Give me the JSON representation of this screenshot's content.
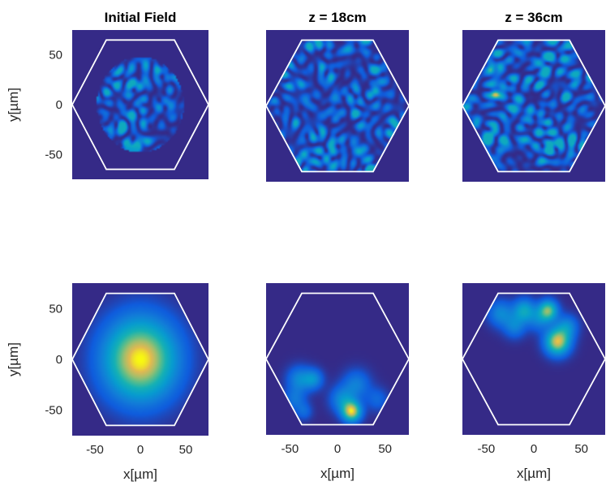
{
  "chart_data": [
    {
      "type": "heatmap",
      "title": "Initial Field",
      "pattern": "speckle-disk",
      "xlabel": "",
      "ylabel": "y[µm]",
      "xlim": [
        -75,
        75
      ],
      "ylim": [
        75,
        -75
      ],
      "xticks": [],
      "yticks": [
        "-50",
        "0",
        "50"
      ],
      "overlay": "hexagon",
      "hexagon_radius": 75
    },
    {
      "type": "heatmap",
      "title": "z = 18cm",
      "pattern": "speckle-hex",
      "xlabel": "",
      "ylabel": "",
      "xlim": [
        -75,
        75
      ],
      "ylim": [
        75,
        -75
      ],
      "xticks": [],
      "yticks": [],
      "overlay": "hexagon",
      "hexagon_radius": 75,
      "hotspots": [
        [
          22,
          -45
        ],
        [
          -35,
          -48
        ],
        [
          40,
          15
        ]
      ]
    },
    {
      "type": "heatmap",
      "title": "z = 36cm",
      "pattern": "speckle-hex",
      "xlabel": "",
      "ylabel": "",
      "xlim": [
        -75,
        75
      ],
      "ylim": [
        75,
        -75
      ],
      "xticks": [],
      "yticks": [],
      "overlay": "hexagon",
      "hexagon_radius": 75,
      "hotspots": [
        [
          -40,
          12
        ],
        [
          -35,
          38
        ],
        [
          -45,
          35
        ]
      ]
    },
    {
      "type": "heatmap",
      "title": "",
      "pattern": "gaussian",
      "xlabel": "x[µm]",
      "ylabel": "y[µm]",
      "xlim": [
        -75,
        75
      ],
      "ylim": [
        75,
        -75
      ],
      "xticks": [
        "-50",
        "0",
        "50"
      ],
      "yticks": [
        "-50",
        "0",
        "50"
      ],
      "overlay": "hexagon",
      "hexagon_radius": 75,
      "blobs": [
        [
          0,
          0,
          28,
          1.0
        ]
      ]
    },
    {
      "type": "heatmap",
      "title": "",
      "pattern": "blobs",
      "xlabel": "x[µm]",
      "ylabel": "",
      "xlim": [
        -75,
        75
      ],
      "ylim": [
        75,
        -75
      ],
      "xticks": [
        "-50",
        "0",
        "50"
      ],
      "yticks": [],
      "overlay": "hexagon",
      "hexagon_radius": 75,
      "blobs": [
        [
          15,
          -52,
          7,
          0.9
        ],
        [
          5,
          -40,
          9,
          0.35
        ],
        [
          -40,
          -20,
          9,
          0.35
        ],
        [
          -25,
          -20,
          7,
          0.35
        ],
        [
          -45,
          -40,
          8,
          0.25
        ],
        [
          -35,
          -52,
          6,
          0.2
        ],
        [
          20,
          -25,
          10,
          0.3
        ],
        [
          42,
          -40,
          8,
          0.2
        ]
      ]
    },
    {
      "type": "heatmap",
      "title": "",
      "pattern": "blobs",
      "xlabel": "x[µm]",
      "ylabel": "",
      "xlim": [
        -75,
        75
      ],
      "ylim": [
        75,
        -75
      ],
      "xticks": [
        "-50",
        "0",
        "50"
      ],
      "yticks": [],
      "overlay": "hexagon",
      "hexagon_radius": 75,
      "blobs": [
        [
          25,
          17,
          9,
          0.9
        ],
        [
          15,
          48,
          7,
          0.75
        ],
        [
          -10,
          48,
          8,
          0.5
        ],
        [
          -35,
          45,
          9,
          0.35
        ],
        [
          -20,
          32,
          8,
          0.3
        ],
        [
          35,
          32,
          8,
          0.35
        ],
        [
          5,
          38,
          8,
          0.25
        ]
      ]
    }
  ]
}
